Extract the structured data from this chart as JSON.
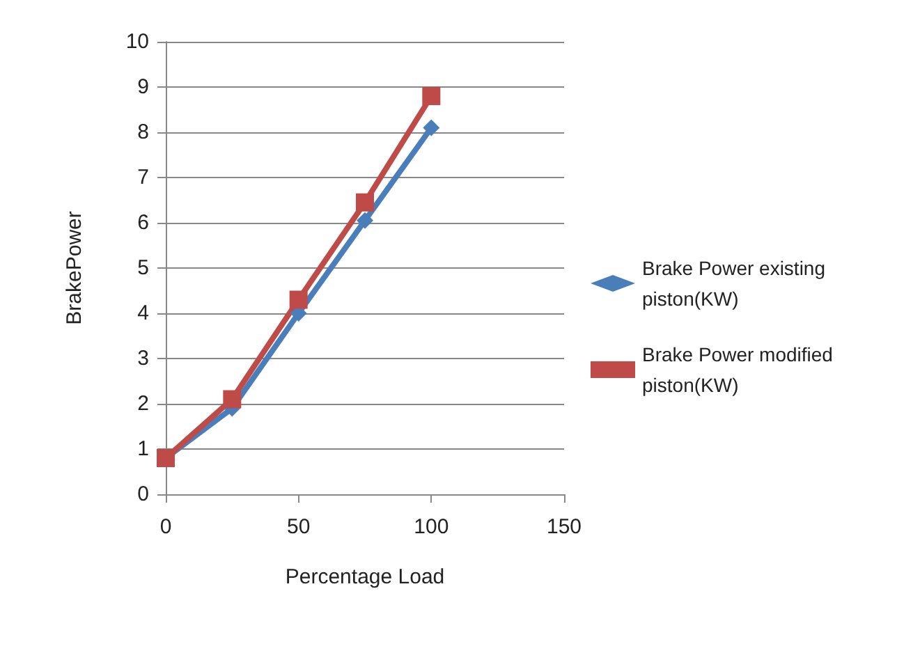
{
  "chart_data": {
    "type": "line",
    "xlabel": "Percentage Load",
    "ylabel": "BrakePower",
    "x": [
      0,
      25,
      50,
      75,
      100
    ],
    "series": [
      {
        "name": "Brake Power existing piston(KW)",
        "color": "#4a7ebb",
        "marker": "diamond",
        "values": [
          0.8,
          1.9,
          4.0,
          6.05,
          8.1
        ]
      },
      {
        "name": "Brake Power modified piston(KW)",
        "color": "#be4b48",
        "marker": "square",
        "values": [
          0.8,
          2.1,
          4.3,
          6.45,
          8.8
        ]
      }
    ],
    "xlim": [
      0,
      150
    ],
    "xticks": [
      0,
      50,
      100,
      150
    ],
    "ylim": [
      0,
      10
    ],
    "yticks": [
      0,
      1,
      2,
      3,
      4,
      5,
      6,
      7,
      8,
      9,
      10
    ],
    "grid": "y",
    "legend": "right",
    "line_style": "solid"
  }
}
